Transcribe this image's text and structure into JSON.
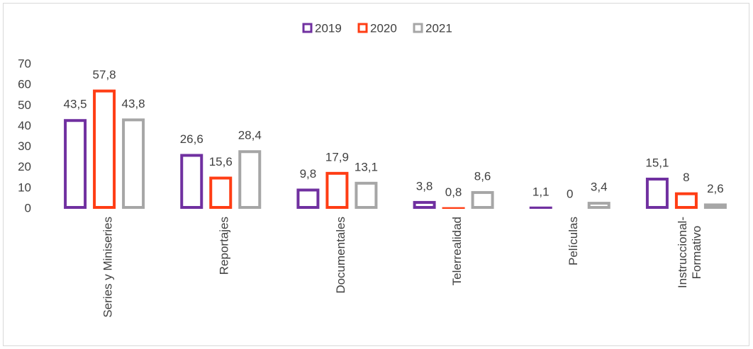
{
  "chart_data": {
    "type": "bar",
    "categories": [
      "Series y Miniseries",
      "Reportajes",
      "Documentales",
      "Telerrealidad",
      "Películas",
      "Instruccional-Formativo"
    ],
    "series": [
      {
        "name": "2019",
        "color": "#7030a0",
        "values": [
          43.5,
          26.6,
          9.8,
          3.8,
          1.1,
          15.1
        ],
        "value_labels": [
          "43,5",
          "26,6",
          "9,8",
          "3,8",
          "1,1",
          "15,1"
        ]
      },
      {
        "name": "2020",
        "color": "#ff3d14",
        "values": [
          57.8,
          15.6,
          17.9,
          0.8,
          0,
          8
        ],
        "value_labels": [
          "57,8",
          "15,6",
          "17,9",
          "0,8",
          "0",
          "8"
        ]
      },
      {
        "name": "2021",
        "color": "#a6a6a6",
        "values": [
          43.8,
          28.4,
          13.1,
          8.6,
          3.4,
          2.6
        ],
        "value_labels": [
          "43,8",
          "28,4",
          "13,1",
          "8,6",
          "3,4",
          "2,6"
        ]
      }
    ],
    "ylim": [
      0,
      70
    ],
    "yticks": [
      0,
      10,
      20,
      30,
      40,
      50,
      60,
      70
    ],
    "legend": "top"
  }
}
